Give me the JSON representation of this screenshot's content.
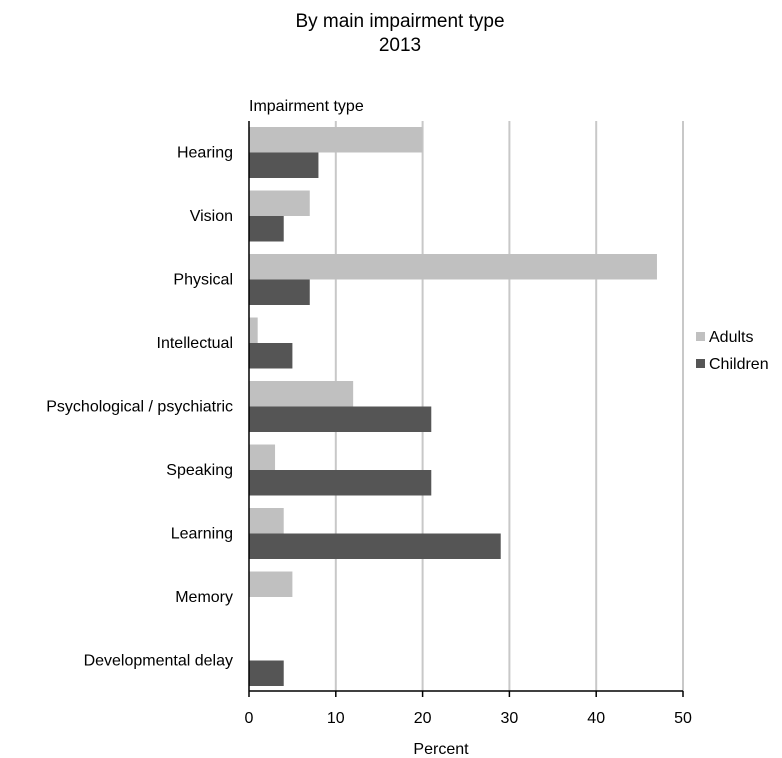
{
  "chart_data": {
    "type": "bar",
    "orientation": "horizontal",
    "title": "By main impairment type",
    "subtitle": "2013",
    "category_axis_label": "Impairment type",
    "xlabel": "Percent",
    "xlim": [
      0,
      50
    ],
    "xticks": [
      0,
      10,
      20,
      30,
      40,
      50
    ],
    "grid": "vertical",
    "legend_position": "right",
    "categories": [
      "Hearing",
      "Vision",
      "Physical",
      "Intellectual",
      "Psychological / psychiatric",
      "Speaking",
      "Learning",
      "Memory",
      "Developmental delay"
    ],
    "series": [
      {
        "name": "Adults",
        "color": "#c0c0c0",
        "values": [
          20,
          7,
          47,
          1,
          12,
          3,
          4,
          5,
          0
        ]
      },
      {
        "name": "Children",
        "color": "#555555",
        "values": [
          8,
          4,
          7,
          5,
          21,
          21,
          29,
          0,
          4
        ]
      }
    ]
  }
}
